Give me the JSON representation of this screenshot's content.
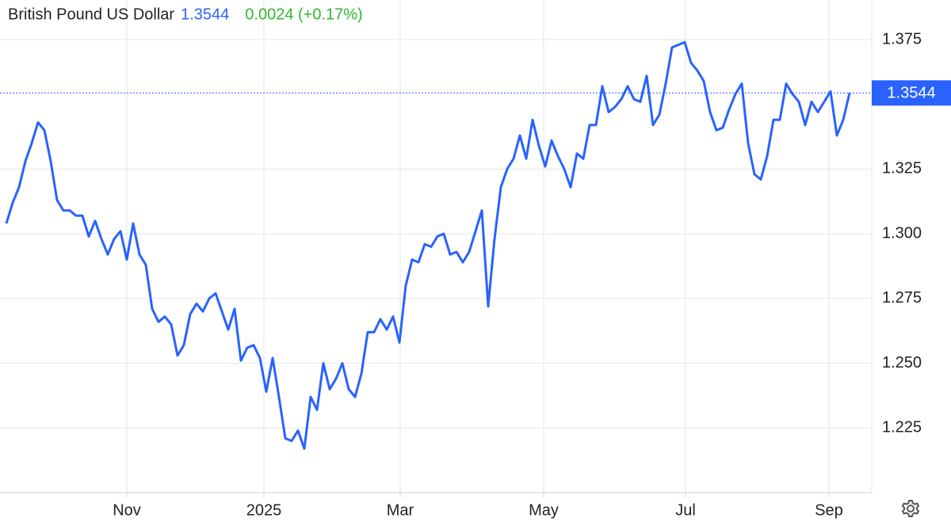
{
  "chart_data": {
    "type": "line",
    "title": "British Pound US Dollar",
    "last_price": "1.3544",
    "change": "0.0024 (+0.17%)",
    "ylim": [
      1.2,
      1.39
    ],
    "yticks": [
      1.225,
      {
        "value": 1.25,
        "label": "1.250"
      },
      1.275,
      {
        "value": 1.3,
        "label": "1.300"
      },
      1.325,
      1.375
    ],
    "xlim": [
      0,
      133
    ],
    "xticks": [
      {
        "value": 19,
        "label": "Nov"
      },
      {
        "value": 40.625,
        "label": "2025"
      },
      {
        "value": 62.125,
        "label": "Mar"
      },
      {
        "value": 84.75,
        "label": "May"
      },
      {
        "value": 107.125,
        "label": "Jul"
      },
      {
        "value": 129.75,
        "label": "Sep"
      }
    ],
    "grid": true,
    "series": [
      {
        "name": "British Pound US Dollar",
        "color": "#2962ff",
        "values": [
          1.304,
          1.312,
          1.318,
          1.328,
          1.335,
          1.343,
          1.34,
          1.328,
          1.313,
          1.309,
          1.309,
          1.307,
          1.307,
          1.299,
          1.305,
          1.298,
          1.292,
          1.298,
          1.301,
          1.29,
          1.304,
          1.292,
          1.288,
          1.271,
          1.266,
          1.268,
          1.265,
          1.253,
          1.257,
          1.269,
          1.273,
          1.27,
          1.275,
          1.277,
          1.27,
          1.263,
          1.271,
          1.251,
          1.256,
          1.257,
          1.252,
          1.239,
          1.252,
          1.237,
          1.221,
          1.22,
          1.224,
          1.217,
          1.237,
          1.232,
          1.25,
          1.24,
          1.244,
          1.25,
          1.24,
          1.237,
          1.246,
          1.262,
          1.262,
          1.267,
          1.263,
          1.268,
          1.258,
          1.28,
          1.29,
          1.289,
          1.296,
          1.295,
          1.299,
          1.3,
          1.292,
          1.293,
          1.289,
          1.293,
          1.301,
          1.309,
          1.272,
          1.298,
          1.318,
          1.325,
          1.329,
          1.338,
          1.329,
          1.344,
          1.334,
          1.326,
          1.336,
          1.33,
          1.325,
          1.318,
          1.331,
          1.329,
          1.342,
          1.342,
          1.357,
          1.347,
          1.349,
          1.352,
          1.357,
          1.352,
          1.351,
          1.361,
          1.342,
          1.346,
          1.358,
          1.372,
          1.373,
          1.374,
          1.366,
          1.363,
          1.359,
          1.347,
          1.34,
          1.341,
          1.348,
          1.354,
          1.358,
          1.335,
          1.323,
          1.321,
          1.33,
          1.344,
          1.344,
          1.358,
          1.354,
          1.351,
          1.342,
          1.351,
          1.347,
          1.351,
          1.355,
          1.338,
          1.344,
          1.3544
        ]
      }
    ]
  }
}
